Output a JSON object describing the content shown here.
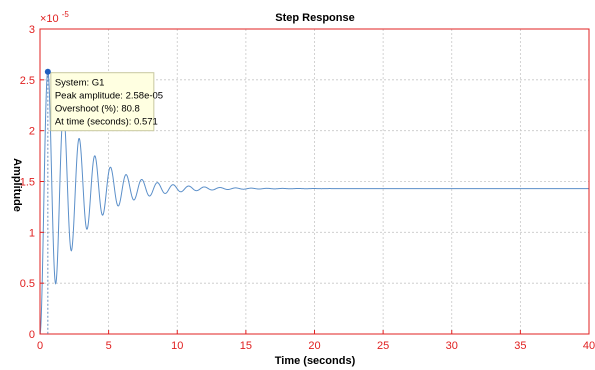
{
  "chart_data": {
    "type": "line",
    "title": "Step Response",
    "xlabel": "Time (seconds)",
    "ylabel": "Amplitude",
    "y_exponent_label": "×10",
    "y_exponent_power": "-5",
    "xlim": [
      0,
      40
    ],
    "ylim": [
      0,
      3
    ],
    "y_scale": 1e-05,
    "xticks": [
      "0",
      "5",
      "10",
      "15",
      "20",
      "25",
      "30",
      "35",
      "40"
    ],
    "yticks": [
      "0",
      "0.5",
      "1",
      "1.5",
      "2",
      "2.5",
      "3"
    ],
    "grid": true,
    "series": [
      {
        "name": "G1",
        "final_value": 1.43,
        "peak_time": 0.571,
        "peak_value": 2.58,
        "oscillation_period": 1.14,
        "decay_rate": 0.373,
        "sample_step": 0.02,
        "color": "#5b8fc9"
      }
    ],
    "datatip": {
      "lines": [
        "System: G1",
        "Peak amplitude: 2.58e-05",
        "Overshoot (%): 80.8",
        "At time (seconds): 0.571"
      ],
      "x": 0.571,
      "y": 2.58
    },
    "colors": {
      "axis": "#e02020",
      "grid": "#c8c8c8",
      "line": "#5b8fc9",
      "marker": "#1f5fbf",
      "tip_bg": "#ffffe1",
      "tip_border": "#c8c8a0"
    }
  }
}
